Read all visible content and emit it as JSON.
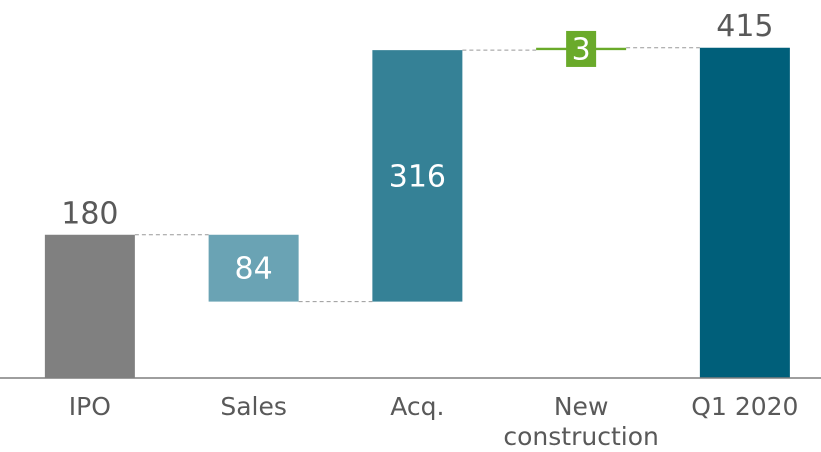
{
  "chart_data": {
    "type": "waterfall",
    "categories": [
      "IPO",
      "Sales",
      "Acq.",
      "New construction",
      "Q1 2020"
    ],
    "values": [
      180,
      -84,
      316,
      3,
      415
    ],
    "value_labels": [
      "180",
      "84",
      "316",
      "3",
      "415"
    ],
    "measures": [
      "absolute",
      "relative",
      "relative",
      "relative",
      "total"
    ],
    "colors": [
      "#808080",
      "#6aa3b4",
      "#358196",
      "#6aaa2a",
      "#005f7a"
    ],
    "ylim": [
      0,
      475
    ]
  }
}
